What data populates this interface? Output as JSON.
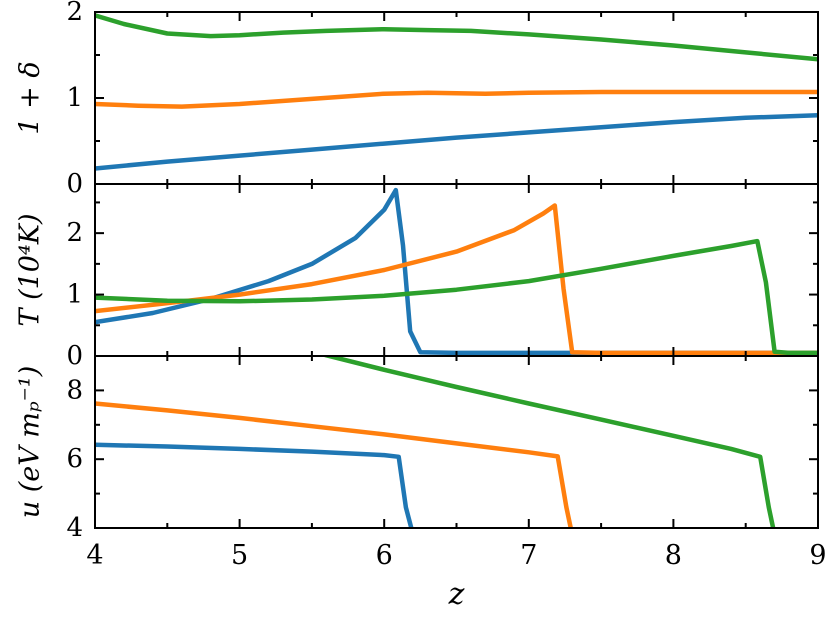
{
  "figure": {
    "background": "#ffffff",
    "axis_color": "#000000",
    "xlabel": "z",
    "xlim": [
      4,
      9
    ],
    "x_ticks": [
      4,
      5,
      6,
      7,
      8,
      9
    ],
    "x_minor_step": 0.5,
    "line_width": 4.5,
    "colors": {
      "blue": "#1f77b4",
      "orange": "#ff7f0e",
      "green": "#2ca02c"
    }
  },
  "chart_data": [
    {
      "type": "line",
      "name": "overdensity-panel",
      "ylabel": "1 + δ",
      "ylim": [
        0,
        2
      ],
      "y_ticks": [
        0,
        1,
        2
      ],
      "y_minor": [
        0.5,
        1.5
      ],
      "grid": false,
      "legend": null,
      "series": [
        {
          "name": "blue",
          "color": "#1f77b4",
          "x": [
            4,
            4.5,
            5,
            5.5,
            6,
            6.5,
            7,
            7.5,
            8,
            8.5,
            9
          ],
          "y": [
            0.18,
            0.26,
            0.33,
            0.4,
            0.47,
            0.54,
            0.6,
            0.66,
            0.72,
            0.77,
            0.8
          ]
        },
        {
          "name": "orange",
          "color": "#ff7f0e",
          "x": [
            4,
            4.3,
            4.6,
            5,
            5.5,
            6,
            6.3,
            6.7,
            7,
            7.5,
            8,
            8.5,
            9
          ],
          "y": [
            0.93,
            0.91,
            0.9,
            0.93,
            0.99,
            1.05,
            1.06,
            1.05,
            1.06,
            1.07,
            1.07,
            1.07,
            1.07
          ]
        },
        {
          "name": "green",
          "color": "#2ca02c",
          "x": [
            4,
            4.2,
            4.5,
            4.8,
            5,
            5.3,
            5.6,
            6,
            6.3,
            6.6,
            7,
            7.5,
            8,
            8.5,
            9
          ],
          "y": [
            1.96,
            1.86,
            1.75,
            1.72,
            1.73,
            1.76,
            1.78,
            1.8,
            1.79,
            1.78,
            1.74,
            1.68,
            1.61,
            1.53,
            1.45
          ]
        }
      ]
    },
    {
      "type": "line",
      "name": "temperature-panel",
      "ylabel": "T (10⁴K)",
      "ylim": [
        0,
        2.8
      ],
      "y_ticks": [
        0,
        1,
        2
      ],
      "y_minor": [
        0.5,
        1.5,
        2.5
      ],
      "grid": false,
      "legend": null,
      "series": [
        {
          "name": "blue",
          "color": "#1f77b4",
          "x": [
            4,
            4.4,
            4.8,
            5.2,
            5.5,
            5.8,
            6.0,
            6.08,
            6.13,
            6.18,
            6.25,
            6.5,
            7,
            8,
            9
          ],
          "y": [
            0.55,
            0.7,
            0.93,
            1.22,
            1.5,
            1.92,
            2.38,
            2.7,
            1.8,
            0.4,
            0.06,
            0.05,
            0.05,
            0.05,
            0.05
          ]
        },
        {
          "name": "orange",
          "color": "#ff7f0e",
          "x": [
            4,
            4.5,
            5,
            5.5,
            6,
            6.5,
            6.9,
            7.1,
            7.18,
            7.24,
            7.3,
            7.5,
            8,
            9
          ],
          "y": [
            0.73,
            0.86,
            1.0,
            1.17,
            1.4,
            1.7,
            2.05,
            2.32,
            2.45,
            1.1,
            0.06,
            0.05,
            0.05,
            0.05
          ]
        },
        {
          "name": "green",
          "color": "#2ca02c",
          "x": [
            4,
            4.5,
            5,
            5.5,
            6,
            6.5,
            7,
            7.5,
            8,
            8.4,
            8.58,
            8.64,
            8.7,
            8.8,
            9
          ],
          "y": [
            0.95,
            0.9,
            0.89,
            0.92,
            0.98,
            1.08,
            1.22,
            1.42,
            1.63,
            1.79,
            1.87,
            1.2,
            0.07,
            0.05,
            0.05
          ]
        }
      ]
    },
    {
      "type": "line",
      "name": "energy-panel",
      "ylabel": "u (eV mₚ⁻¹)",
      "ylim": [
        4,
        9
      ],
      "y_ticks": [
        4,
        6,
        8
      ],
      "y_minor": [
        5,
        7
      ],
      "grid": false,
      "legend": null,
      "series": [
        {
          "name": "blue",
          "color": "#1f77b4",
          "x": [
            4,
            4.5,
            5,
            5.5,
            6,
            6.1,
            6.15,
            6.2
          ],
          "y": [
            6.42,
            6.37,
            6.3,
            6.22,
            6.12,
            6.07,
            4.6,
            3.8
          ]
        },
        {
          "name": "orange",
          "color": "#ff7f0e",
          "x": [
            4,
            4.5,
            5,
            5.5,
            6,
            6.5,
            7,
            7.2,
            7.26,
            7.3
          ],
          "y": [
            7.62,
            7.42,
            7.2,
            6.96,
            6.72,
            6.46,
            6.2,
            6.08,
            4.6,
            3.8
          ]
        },
        {
          "name": "green",
          "color": "#2ca02c",
          "x": [
            5.45,
            5.6,
            6,
            6.5,
            7,
            7.5,
            8,
            8.4,
            8.6,
            8.66,
            8.7
          ],
          "y": [
            9.2,
            9.02,
            8.6,
            8.1,
            7.62,
            7.15,
            6.68,
            6.3,
            6.07,
            4.6,
            3.8
          ]
        }
      ]
    }
  ]
}
